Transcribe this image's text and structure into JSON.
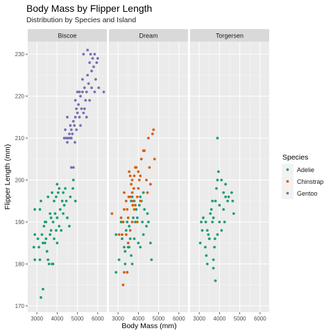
{
  "chart_data": {
    "type": "scatter",
    "title": "Body Mass by Flipper Length",
    "subtitle": "Distribution by Species and Island",
    "xlabel": "Body Mass (mm)",
    "ylabel": "Flipper Length (mm)",
    "xlim": [
      2550,
      6450
    ],
    "ylim": [
      168.5,
      233
    ],
    "xticks": [
      3000,
      4000,
      5000,
      6000
    ],
    "xtick_labels": [
      "3000",
      "4000",
      "5000",
      "6000"
    ],
    "yticks": [
      170,
      180,
      190,
      200,
      210,
      220,
      230
    ],
    "ytick_labels": [
      "170",
      "180",
      "190",
      "200",
      "210",
      "220",
      "230"
    ],
    "grid": true,
    "legend": {
      "title": "Species",
      "placement": "right",
      "entries": [
        {
          "label": "Adelie",
          "color": "#1b9e77"
        },
        {
          "label": "Chinstrap",
          "color": "#d95f02"
        },
        {
          "label": "Gentoo",
          "color": "#7570b3"
        }
      ]
    },
    "panels": [
      {
        "label": "Biscoe",
        "series": [
          {
            "name": "Adelie",
            "points": [
              [
                2850,
                184
              ],
              [
                2900,
                181
              ],
              [
                2900,
                187
              ],
              [
                2900,
                193
              ],
              [
                3050,
                186
              ],
              [
                3100,
                184
              ],
              [
                3150,
                181
              ],
              [
                3150,
                193
              ],
              [
                3200,
                195
              ],
              [
                3250,
                187
              ],
              [
                3300,
                185
              ],
              [
                3350,
                189
              ],
              [
                3400,
                185
              ],
              [
                3400,
                190
              ],
              [
                3450,
                186
              ],
              [
                3500,
                183
              ],
              [
                3550,
                181
              ],
              [
                3600,
                180
              ],
              [
                3650,
                187
              ],
              [
                3700,
                188
              ],
              [
                3700,
                191
              ],
              [
                3750,
                180
              ],
              [
                3800,
                180
              ],
              [
                3800,
                190
              ],
              [
                3850,
                195
              ],
              [
                3900,
                192
              ],
              [
                3950,
                196
              ],
              [
                4000,
                191
              ],
              [
                4000,
                199
              ],
              [
                4050,
                197
              ],
              [
                4100,
                189
              ],
              [
                4150,
                193
              ],
              [
                4200,
                188
              ],
              [
                4250,
                195
              ],
              [
                4300,
                192
              ],
              [
                4350,
                194
              ],
              [
                4400,
                198
              ],
              [
                4450,
                195
              ],
              [
                4500,
                191
              ],
              [
                4600,
                189
              ],
              [
                4650,
                196
              ],
              [
                4775,
                198
              ],
              [
                4800,
                200
              ],
              [
                4900,
                195
              ],
              [
                3200,
                172
              ],
              [
                3300,
                174
              ],
              [
                3450,
                190
              ],
              [
                3550,
                196
              ],
              [
                3650,
                192
              ],
              [
                3850,
                186
              ],
              [
                4000,
                185
              ],
              [
                4100,
                198
              ],
              [
                4300,
                197
              ],
              [
                3750,
                197
              ],
              [
                3950,
                188
              ]
            ]
          },
          {
            "name": "Gentoo",
            "points": [
              [
                4350,
                210
              ],
              [
                4400,
                212
              ],
              [
                4450,
                210
              ],
              [
                4500,
                209
              ],
              [
                4500,
                215
              ],
              [
                4550,
                210
              ],
              [
                4600,
                211
              ],
              [
                4650,
                210
              ],
              [
                4650,
                213
              ],
              [
                4700,
                210
              ],
              [
                4700,
                212
              ],
              [
                4750,
                211
              ],
              [
                4800,
                214
              ],
              [
                4850,
                213
              ],
              [
                4875,
                209
              ],
              [
                4900,
                215
              ],
              [
                4900,
                219
              ],
              [
                4950,
                212
              ],
              [
                5000,
                216
              ],
              [
                5050,
                218
              ],
              [
                5100,
                215
              ],
              [
                5150,
                220
              ],
              [
                5200,
                217
              ],
              [
                5250,
                221
              ],
              [
                5300,
                216
              ],
              [
                5350,
                222
              ],
              [
                5400,
                219
              ],
              [
                5450,
                221
              ],
              [
                5500,
                225
              ],
              [
                5550,
                223
              ],
              [
                5600,
                228
              ],
              [
                5650,
                230
              ],
              [
                5700,
                226
              ],
              [
                5750,
                229
              ],
              [
                5800,
                227
              ],
              [
                5850,
                230
              ],
              [
                5900,
                224
              ],
              [
                5950,
                228
              ],
              [
                6000,
                229
              ],
              [
                6050,
                222
              ],
              [
                6300,
                221
              ],
              [
                5500,
                231
              ],
              [
                4700,
                203
              ],
              [
                4800,
                203
              ],
              [
                5000,
                221
              ],
              [
                5150,
                213
              ],
              [
                5250,
                224
              ],
              [
                5350,
                217
              ],
              [
                5450,
                215
              ],
              [
                5600,
                219
              ],
              [
                5700,
                222
              ],
              [
                5850,
                221
              ],
              [
                4950,
                217
              ],
              [
                5100,
                221
              ],
              [
                5300,
                230
              ]
            ]
          }
        ]
      },
      {
        "label": "Dream",
        "series": [
          {
            "name": "Adelie",
            "points": [
              [
                2900,
                178
              ],
              [
                2900,
                187
              ],
              [
                3050,
                181
              ],
              [
                3150,
                190
              ],
              [
                3200,
                186
              ],
              [
                3250,
                190
              ],
              [
                3300,
                184
              ],
              [
                3350,
                183
              ],
              [
                3400,
                188
              ],
              [
                3450,
                190
              ],
              [
                3500,
                184
              ],
              [
                3550,
                189
              ],
              [
                3600,
                186
              ],
              [
                3650,
                195
              ],
              [
                3700,
                196
              ],
              [
                3750,
                191
              ],
              [
                3800,
                195
              ],
              [
                3850,
                190
              ],
              [
                3900,
                193
              ],
              [
                3950,
                191
              ],
              [
                4050,
                194
              ],
              [
                4100,
                196
              ],
              [
                4150,
                195
              ],
              [
                4200,
                190
              ],
              [
                4250,
                187
              ],
              [
                4300,
                193
              ],
              [
                4400,
                189
              ],
              [
                4450,
                192
              ],
              [
                4600,
                185
              ],
              [
                4650,
                181
              ],
              [
                3350,
                180
              ],
              [
                3450,
                178
              ],
              [
                3550,
                184
              ],
              [
                3700,
                180
              ],
              [
                3800,
                186
              ],
              [
                4000,
                185
              ],
              [
                4100,
                184
              ],
              [
                4250,
                197
              ],
              [
                4500,
                190
              ],
              [
                3650,
                182
              ]
            ]
          },
          {
            "name": "Chinstrap",
            "points": [
              [
                2700,
                192
              ],
              [
                3050,
                187
              ],
              [
                3200,
                187
              ],
              [
                3250,
                190
              ],
              [
                3300,
                178
              ],
              [
                3400,
                187
              ],
              [
                3450,
                193
              ],
              [
                3500,
                191
              ],
              [
                3525,
                196
              ],
              [
                3550,
                202
              ],
              [
                3600,
                201
              ],
              [
                3650,
                199
              ],
              [
                3700,
                197
              ],
              [
                3725,
                194
              ],
              [
                3750,
                195
              ],
              [
                3775,
                198
              ],
              [
                3800,
                193
              ],
              [
                3850,
                203
              ],
              [
                3900,
                203
              ],
              [
                3950,
                196
              ],
              [
                4000,
                198
              ],
              [
                4050,
                200
              ],
              [
                4100,
                201
              ],
              [
                4150,
                205
              ],
              [
                4300,
                207
              ],
              [
                4400,
                200
              ],
              [
                4500,
                210
              ],
              [
                4550,
                203
              ],
              [
                4600,
                199
              ],
              [
                4750,
                212
              ],
              [
                4800,
                205
              ],
              [
                3150,
                191
              ],
              [
                3300,
                193
              ],
              [
                3400,
                195
              ],
              [
                3600,
                196
              ],
              [
                3700,
                190
              ],
              [
                3850,
                194
              ],
              [
                4000,
                202
              ],
              [
                4250,
                207
              ],
              [
                4700,
                211
              ],
              [
                3250,
                175
              ],
              [
                3450,
                178
              ],
              [
                3600,
                188
              ],
              [
                3700,
                200
              ],
              [
                3300,
                197
              ],
              [
                3500,
                185
              ],
              [
                3800,
                201
              ],
              [
                3950,
                190
              ],
              [
                4100,
                195
              ],
              [
                4450,
                197
              ]
            ]
          }
        ]
      },
      {
        "label": "Torgersen",
        "series": [
          {
            "name": "Adelie",
            "points": [
              [
                3050,
                185
              ],
              [
                3100,
                190
              ],
              [
                3150,
                188
              ],
              [
                3200,
                191
              ],
              [
                3300,
                184
              ],
              [
                3325,
                190
              ],
              [
                3350,
                182
              ],
              [
                3400,
                188
              ],
              [
                3450,
                187
              ],
              [
                3500,
                186
              ],
              [
                3550,
                192
              ],
              [
                3600,
                193
              ],
              [
                3650,
                190
              ],
              [
                3700,
                191
              ],
              [
                3750,
                184
              ],
              [
                3775,
                186
              ],
              [
                3800,
                195
              ],
              [
                3800,
                176
              ],
              [
                3850,
                198
              ],
              [
                3900,
                200
              ],
              [
                3950,
                202
              ],
              [
                4000,
                190
              ],
              [
                4100,
                188
              ],
              [
                4200,
                197
              ],
              [
                4250,
                190
              ],
              [
                4300,
                196
              ],
              [
                4400,
                195
              ],
              [
                4450,
                196
              ],
              [
                4600,
                197
              ],
              [
                4650,
                195
              ],
              [
                4700,
                192
              ],
              [
                3900,
                210
              ],
              [
                3700,
                181
              ],
              [
                3500,
                186
              ],
              [
                3400,
                180
              ],
              [
                4100,
                200
              ],
              [
                4300,
                199
              ],
              [
                3700,
                179
              ],
              [
                3650,
                195
              ],
              [
                4000,
                194
              ],
              [
                4200,
                193
              ],
              [
                3900,
                187
              ]
            ]
          }
        ]
      }
    ]
  }
}
